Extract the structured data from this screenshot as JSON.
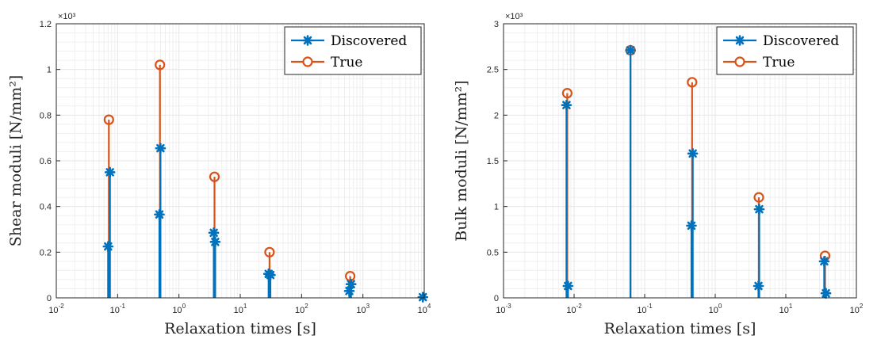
{
  "colors": {
    "discovered": "#0072BD",
    "true": "#D95319",
    "grid": "#e6e6e6",
    "axis": "#262626"
  },
  "chart_data": [
    {
      "type": "stem",
      "xscale": "log",
      "xlim": [
        0.01,
        10000
      ],
      "ylim": [
        0,
        1.2
      ],
      "y_multiplier": "×10³",
      "xlabel": "Relaxation times [s]",
      "ylabel": "Shear moduli [N/mm²]",
      "yticks": [
        "0",
        "0.2",
        "0.4",
        "0.6",
        "0.8",
        "1",
        "1.2"
      ],
      "xticks": [
        {
          "base": "10",
          "exp": "-2"
        },
        {
          "base": "10",
          "exp": "-1"
        },
        {
          "base": "10",
          "exp": "0"
        },
        {
          "base": "10",
          "exp": "1"
        },
        {
          "base": "10",
          "exp": "2"
        },
        {
          "base": "10",
          "exp": "3"
        },
        {
          "base": "10",
          "exp": "4"
        }
      ],
      "grid": true,
      "legend": {
        "placement": "top-right",
        "entries": [
          "Discovered",
          "True"
        ]
      },
      "series": [
        {
          "name": "Discovered",
          "marker": "asterisk",
          "x": [
            0.07,
            0.075,
            0.48,
            0.5,
            3.7,
            3.9,
            29,
            31,
            600,
            640,
            9500
          ],
          "y": [
            0.225,
            0.55,
            0.365,
            0.655,
            0.285,
            0.245,
            0.105,
            0.1,
            0.03,
            0.06,
            0.003
          ]
        },
        {
          "name": "True",
          "marker": "circle",
          "x": [
            0.072,
            0.49,
            3.8,
            30,
            620
          ],
          "y": [
            0.78,
            1.02,
            0.53,
            0.2,
            0.095
          ]
        }
      ]
    },
    {
      "type": "stem",
      "xscale": "log",
      "xlim": [
        0.001,
        100
      ],
      "ylim": [
        0,
        3
      ],
      "y_multiplier": "×10³",
      "xlabel": "Relaxation times [s]",
      "ylabel": "Bulk moduli [N/mm²]",
      "yticks": [
        "0",
        "0.5",
        "1",
        "1.5",
        "2",
        "2.5",
        "3"
      ],
      "xticks": [
        {
          "base": "10",
          "exp": "-3"
        },
        {
          "base": "10",
          "exp": "-2"
        },
        {
          "base": "10",
          "exp": "-1"
        },
        {
          "base": "10",
          "exp": "0"
        },
        {
          "base": "10",
          "exp": "1"
        },
        {
          "base": "10",
          "exp": "2"
        }
      ],
      "grid": true,
      "legend": {
        "placement": "top-right",
        "entries": [
          "Discovered",
          "True"
        ]
      },
      "series": [
        {
          "name": "Discovered",
          "marker": "asterisk",
          "x": [
            0.0078,
            0.0082,
            0.063,
            0.46,
            0.48,
            4.1,
            4.2,
            35,
            37
          ],
          "y": [
            2.11,
            0.13,
            2.71,
            0.79,
            1.58,
            0.13,
            0.97,
            0.4,
            0.05
          ]
        },
        {
          "name": "True",
          "marker": "circle",
          "x": [
            0.008,
            0.063,
            0.47,
            4.15,
            36
          ],
          "y": [
            2.24,
            2.71,
            2.36,
            1.1,
            0.46
          ]
        }
      ]
    }
  ]
}
